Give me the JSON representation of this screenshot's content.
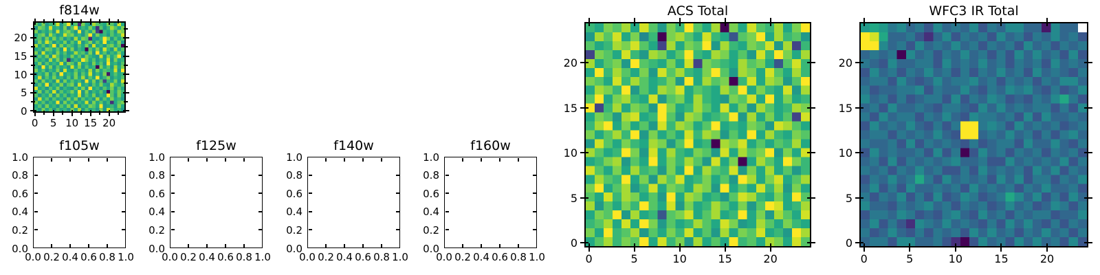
{
  "colors": {
    "background": "#ffffff",
    "axis": "#000000",
    "text": "#000000",
    "nan_color": "#ffffff",
    "viridis_stops": [
      "#440154",
      "#482475",
      "#414487",
      "#355f8d",
      "#2a788e",
      "#21918c",
      "#22a884",
      "#44bf70",
      "#7ad151",
      "#bddf26",
      "#fde725"
    ]
  },
  "chart_data": [
    {
      "type": "heatmap",
      "title": "f814w",
      "colormap": "viridis",
      "grid_size": [
        25,
        25
      ],
      "x_range": [
        -0.5,
        24.5
      ],
      "y_range": [
        -0.5,
        24.5
      ],
      "x_tick_values": [
        0,
        5,
        10,
        15,
        20
      ],
      "x_tick_labels": [
        "0",
        "5",
        "10",
        "15",
        "20"
      ],
      "y_tick_values": [
        0,
        5,
        10,
        15,
        20
      ],
      "y_tick_labels": [
        "0",
        "5",
        "10",
        "15",
        "20"
      ],
      "minor_tick_values": [
        2.5,
        7.5,
        12.5,
        17.5,
        22.5
      ],
      "value_encoding": "one character per cell; hex digit 0-f maps to normalized value 0.0-1.0 on the viridis colormap; n = blank/white; rows listed top (y=24) to bottom (y=0)",
      "grid_rows": [
        "b9c8aae8bf9b2c98dba9cb8e9",
        "8cb9e9a8c7bf8a9c92b8adb9c",
        "c8a9b8e9bca8f8b9c30a9b8dc",
        "9bc8da89ebc9a8bf8c9a8b9ae",
        "ab8c9c9b8a8d9cb298afc8b9b",
        "8c9eb8a9c8b9e8ac8b9f9a8c8",
        "d9b8af8c9ba8b9c8e9a8bc9b0",
        "9a8cb9b8f9c8a90b9c8ea8d9b",
        "c8e9a8c9b89dab8c8f9b8a9c9",
        "8b9c8eb8a9c9b8ca98e8c9bf8",
        "b9a8d9c8b28a9fc9b8a9e8c9a",
        "9c8b9a9e8cb8d9a8c9b8f9a8b",
        "a8f9c8b9a8e9c8b9a0c9b8d9c",
        "c9b8a9c8e98b9a8d8c9ba9e8f",
        "8a9c8b8f9a9c8b9e8a8c19b9a",
        "9e8b9c9a8b8c9d8b9f8ac8a9b",
        "b8c9a8e8c9b9a8f9c8b3a9c8e",
        "8b9f8a9c8bc8e9a8b9c98da9b",
        "e9a8b9c8a98b9c8f9a8b9c8b9",
        "9c8b9e8b9ac9f8c8a9b80b9ca",
        "b8a9c8c9b8a9e8b9c8a9fb8c9",
        "8e9b8b9a8c9c8b9a8d8b9c9a8",
        "c9b8a9f8c9b8a9e8c9b8a29bc",
        "9b8c9a8b9c8e8a9cb9f89a8c9",
        "a8c9b8b9a8c9d8b9a8c8eb9a8"
      ]
    },
    {
      "type": "empty-axes",
      "title": "f105w",
      "x_range": [
        0,
        1
      ],
      "y_range": [
        0,
        1
      ],
      "x_tick_values": [
        0,
        0.2,
        0.4,
        0.6,
        0.8,
        1
      ],
      "x_tick_labels": [
        "0.0",
        "0.2",
        "0.4",
        "0.6",
        "0.8",
        "1.0"
      ],
      "y_tick_values": [
        0,
        0.2,
        0.4,
        0.6,
        0.8,
        1
      ],
      "y_tick_labels": [
        "0.0",
        "0.2",
        "0.4",
        "0.6",
        "0.8",
        "1.0"
      ]
    },
    {
      "type": "empty-axes",
      "title": "f125w",
      "x_range": [
        0,
        1
      ],
      "y_range": [
        0,
        1
      ],
      "x_tick_values": [
        0,
        0.2,
        0.4,
        0.6,
        0.8,
        1
      ],
      "x_tick_labels": [
        "0.0",
        "0.2",
        "0.4",
        "0.6",
        "0.8",
        "1.0"
      ],
      "y_tick_values": [
        0,
        0.2,
        0.4,
        0.6,
        0.8,
        1
      ],
      "y_tick_labels": [
        "0.0",
        "0.2",
        "0.4",
        "0.6",
        "0.8",
        "1.0"
      ]
    },
    {
      "type": "empty-axes",
      "title": "f140w",
      "x_range": [
        0,
        1
      ],
      "y_range": [
        0,
        1
      ],
      "x_tick_values": [
        0,
        0.2,
        0.4,
        0.6,
        0.8,
        1
      ],
      "x_tick_labels": [
        "0.0",
        "0.2",
        "0.4",
        "0.6",
        "0.8",
        "1.0"
      ],
      "y_tick_values": [
        0,
        0.2,
        0.4,
        0.6,
        0.8,
        1
      ],
      "y_tick_labels": [
        "0.0",
        "0.2",
        "0.4",
        "0.6",
        "0.8",
        "1.0"
      ]
    },
    {
      "type": "empty-axes",
      "title": "f160w",
      "x_range": [
        0,
        1
      ],
      "y_range": [
        0,
        1
      ],
      "x_tick_values": [
        0,
        0.2,
        0.4,
        0.6,
        0.8,
        1
      ],
      "x_tick_labels": [
        "0.0",
        "0.2",
        "0.4",
        "0.6",
        "0.8",
        "1.0"
      ],
      "y_tick_values": [
        0,
        0.2,
        0.4,
        0.6,
        0.8,
        1
      ],
      "y_tick_labels": [
        "0.0",
        "0.2",
        "0.4",
        "0.6",
        "0.8",
        "1.0"
      ]
    },
    {
      "type": "heatmap",
      "title": "ACS Total",
      "colormap": "viridis",
      "grid_size": [
        25,
        25
      ],
      "x_range": [
        -0.5,
        24.5
      ],
      "y_range": [
        -0.5,
        24.5
      ],
      "x_tick_values": [
        0,
        5,
        10,
        15,
        20
      ],
      "x_tick_labels": [
        "0",
        "5",
        "10",
        "15",
        "20"
      ],
      "y_tick_values": [
        0,
        5,
        10,
        15,
        20
      ],
      "y_tick_labels": [
        "0",
        "5",
        "10",
        "15",
        "20"
      ],
      "minor_tick_values": [],
      "value_encoding": "one character per cell; hex digit 0-f maps to normalized value 0.0-1.0 on the viridis colormap; n = blank/white; rows listed top (y=24) to bottom (y=0)",
      "grid_rows": [
        "a9cbd9eb8cafb9d0c9ebad9cf",
        "8dbe9c7a0cdb9ea94bcf9dab8",
        "b9adceb93d9cbf8da9cbe8d3a",
        "3cb9ea8dc9bfa9dc9b8eafc9d",
        "d9bc8fba9c9e3cba9dbc94bea",
        "9fadb9c8ebda9cfb8dc9eb9da",
        "cb9eadb9ac8f9dbc0ae9dc8bf",
        "9dcaf8b9dce9ba9dbf9ca9e8d",
        "bf9cda9e8bc9da98cbe9f9c9a",
        "f3ad9cb8fc9adb9e9c8db9adc",
        "9cb8de9afb8dc9abf8d9c9b3e",
        "adf9c9b8eadc9bf9a9cb8edb9",
        "c9bdaf8c9b9eadc8b9f9da9cb",
        "8eb9ca9dc8bf9a0dce9b9bad9",
        "db9afc8e9da9cb8e9dbcf8c9e",
        "9acd8b9f9cadb8e9c09db9fca",
        "eb9c9dab8c9f9dbae8c9d9b8a",
        "9dbaf9c8dbe9ac9b8fd9ce9bd",
        "cf9bd8ae9cb9dc8f9b9ead8c9",
        "b9eadc9b8f9dc9a8beda9c9fb",
        "d8b9cafb9e8c9adb9c8bfe9ad",
        "9cbf8d9a4bce9bd9af9c8db9e",
        "abd9e9fc8b9adb9ec89db9ca9",
        "c9fabd8b9cae9b8d9cbe9a8fd",
        "9bdacbf9eac8d9b9fab9dc9eb"
      ]
    },
    {
      "type": "heatmap",
      "title": "WFC3 IR Total",
      "colormap": "viridis",
      "grid_size": [
        25,
        25
      ],
      "x_range": [
        -0.5,
        24.5
      ],
      "y_range": [
        -0.5,
        24.5
      ],
      "x_tick_values": [
        0,
        5,
        10,
        15,
        20
      ],
      "x_tick_labels": [
        "0",
        "5",
        "10",
        "15",
        "20"
      ],
      "y_tick_values": [
        0,
        5,
        10,
        15,
        20
      ],
      "y_tick_labels": [
        "0",
        "5",
        "10",
        "15",
        "20"
      ],
      "minor_tick_values": [],
      "value_encoding": "one character per cell; hex digit 0-f maps to normalized value 0.0-1.0 on the viridis colormap; n = blank/white; rows listed top (y=24) to bottom (y=0)",
      "features": "bright yellow 2x2 blob near top-left (cols 0-1, rows 22-23); single blank/white cell at top-right corner (col 24, row 24); bright yellow 2x2 block at cols 11-12, rows 12-13",
      "grid_rows": [
        "898675647565746577551755n",
        "fe95564257465647564657564",
        "ff75647565756465647564656",
        "5656075646575646475756474",
        "6547556647565756465647565",
        "4756465756464657564756546",
        "5664754575667564656465775",
        "6455667465575465767546457",
        "7564645664746576454657964",
        "5647556546654757565664647",
        "6475664657547665647475565",
        "47565754646ff676475656456",
        "56646565754ff565756464675",
        "6556474656546456647557546",
        "4756556474604756465646564",
        "5647465656755644756565746",
        "6564657564464756564757465",
        "4657569647565647574664657",
        "5746475565647565646575564",
        "6465746474576456975746475",
        "7554656756465645756457646",
        "4665764546754756465664557",
        "5746427657565464757546465",
        "6457546465647575646575646",
        "5664775564204756475756474"
      ]
    }
  ]
}
